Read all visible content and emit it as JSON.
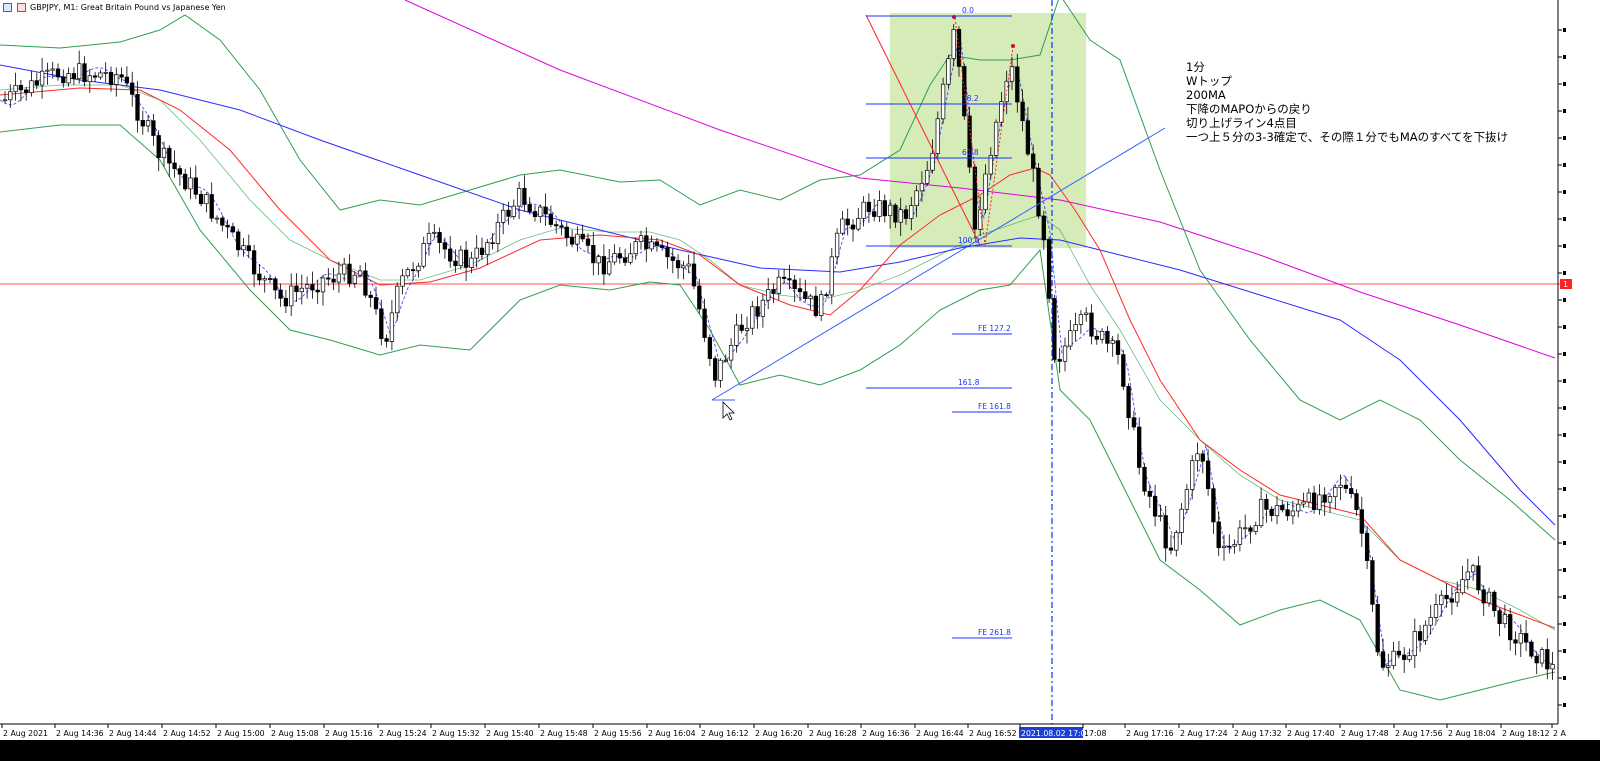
{
  "window": {
    "title": "GBPJPY, M1:  Great Britain Pound vs Japanese Yen"
  },
  "annotation": {
    "lines": [
      "1分",
      "Wトップ",
      "200MA",
      "下降のMAPOからの戻り",
      "切り上げライン4点目",
      "一つ上５分の3-3確定で、その際１分でもMAのすべてを下抜け"
    ]
  },
  "fibo": {
    "levels": [
      "0.0",
      "38.2",
      "61.8",
      "100.0",
      "161.8"
    ],
    "expansion": [
      "FE  127.2",
      "FE  161.8",
      "FE  261.8"
    ]
  },
  "x_axis": {
    "labels": [
      "2 Aug 2021",
      "2 Aug 14:36",
      "2 Aug 14:44",
      "2 Aug 14:52",
      "2 Aug 15:00",
      "2 Aug 15:08",
      "2 Aug 15:16",
      "2 Aug 15:24",
      "2 Aug 15:32",
      "2 Aug 15:40",
      "2 Aug 15:48",
      "2 Aug 15:56",
      "2 Aug 16:04",
      "2 Aug 16:12",
      "2 Aug 16:20",
      "2 Aug 16:28",
      "2 Aug 16:36",
      "2 Aug 16:44",
      "2 Aug 16:52",
      "2021.08.02 17:05",
      "17:08",
      "2 Aug 17:16",
      "2 Aug 17:24",
      "2 Aug 17:32",
      "2 Aug 17:40",
      "2 Aug 17:48",
      "2 Aug 17:56",
      "2 Aug 18:04",
      "2 Aug 18:12",
      "2 A"
    ],
    "highlight": "2021.08.02 17:05"
  },
  "y_axis": {
    "price_marker": "1"
  },
  "colors": {
    "ma_fast": "#ff2a2a",
    "ma_mid": "#2a2aff",
    "ma_200": "#e000e0",
    "bollinger": "#2f9e4f",
    "trendline": "#3a62ff",
    "fibo": "#1c33ff",
    "fibo_box": "#c8e6a0",
    "crosshair": "#0033ff",
    "hline": "#ff5050"
  }
}
